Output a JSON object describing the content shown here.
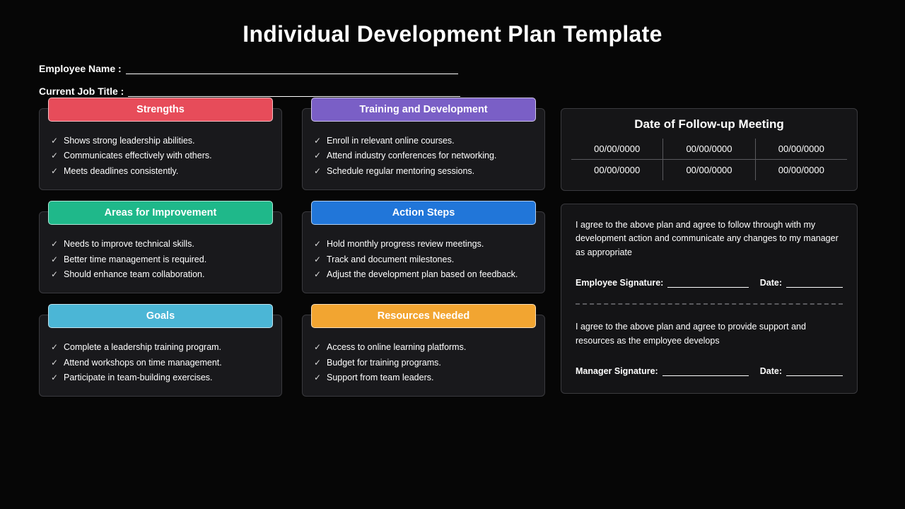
{
  "title": "Individual Development Plan Template",
  "fields": {
    "employee_name_label": "Employee Name :",
    "job_title_label": "Current Job Title :"
  },
  "cards": {
    "strengths": {
      "title": "Strengths",
      "color": "#e74c5a",
      "items": [
        "Shows strong leadership abilities.",
        "Communicates effectively with others.",
        "Meets deadlines consistently."
      ]
    },
    "improvement": {
      "title": "Areas for Improvement",
      "color": "#1fb88a",
      "items": [
        "Needs to improve technical skills.",
        "Better time management is required.",
        "Should enhance team collaboration."
      ]
    },
    "goals": {
      "title": "Goals",
      "color": "#4bb6d6",
      "items": [
        "Complete a leadership training program.",
        "Attend workshops on time management.",
        "Participate in team-building exercises."
      ]
    },
    "training": {
      "title": "Training and Development",
      "color": "#7a5fc6",
      "items": [
        "Enroll in relevant online courses.",
        "Attend industry conferences for networking.",
        "Schedule regular mentoring sessions."
      ]
    },
    "action": {
      "title": "Action Steps",
      "color": "#2176d9",
      "items": [
        "Hold monthly progress review meetings.",
        "Track and document milestones.",
        "Adjust the development plan based on feedback."
      ]
    },
    "resources": {
      "title": "Resources Needed",
      "color": "#f2a531",
      "items": [
        "Access to online learning platforms.",
        "Budget for training programs.",
        "Support from team leaders."
      ]
    }
  },
  "followup": {
    "title": "Date of Follow-up Meeting",
    "dates": [
      "00/00/0000",
      "00/00/0000",
      "00/00/0000",
      "00/00/0000",
      "00/00/0000",
      "00/00/0000"
    ]
  },
  "agreement": {
    "employee_text": "I agree to the above plan and agree to follow through with my development action and communicate any changes to my manager as appropriate",
    "employee_sig_label": "Employee Signature:",
    "manager_text": "I agree to the above plan and agree to provide support and resources as the employee develops",
    "manager_sig_label": "Manager Signature:",
    "date_label": "Date:"
  }
}
